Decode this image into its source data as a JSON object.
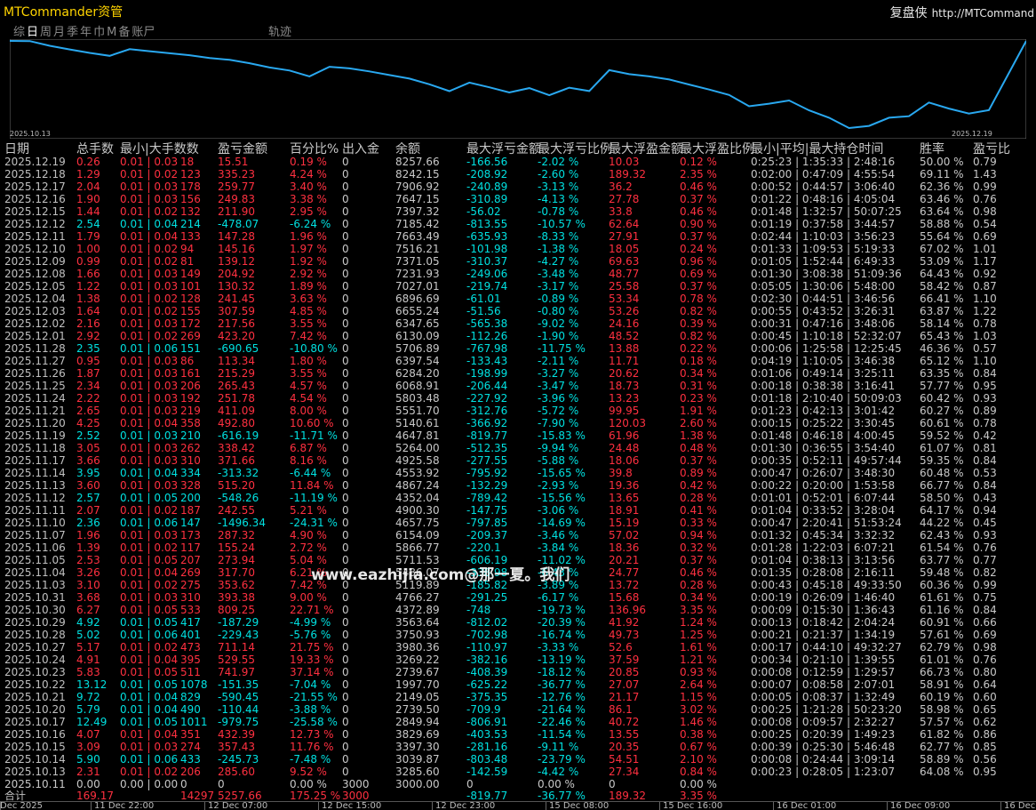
{
  "app": {
    "title": "MTCommander资管",
    "brand": "复盘侠",
    "brand_url": "http://MTCommand"
  },
  "tabs": [
    "综",
    "日",
    "周",
    "月",
    "季",
    "年",
    "巾",
    "M",
    "备",
    "账尸"
  ],
  "active_tab": 1,
  "track_label": "轨迹",
  "equity_chart": {
    "start_label": "2025.10.13",
    "end_label": "2025.12.19",
    "line_color": "#29a8f0",
    "balances": [
      3285.6,
      3039.87,
      3397.3,
      3829.69,
      2849.94,
      2739.5,
      2149.05,
      1997.7,
      2739.67,
      3269.22,
      3980.36,
      3750.93,
      3563.64,
      4372.89,
      4766.27,
      5119.89,
      5486.07,
      5711.53,
      5866.77,
      6154.09,
      4657.75,
      4900.3,
      4352.04,
      4867.24,
      4553.92,
      4925.58,
      5264.0,
      4647.81,
      5140.61,
      5551.7,
      5803.48,
      6068.91,
      6284.2,
      6397.54,
      5706.89,
      6130.09,
      6347.65,
      6655.24,
      6896.69,
      7027.01,
      7231.93,
      7371.05,
      7516.21,
      7663.49,
      7185.42,
      7397.32,
      7647.15,
      7906.92,
      8242.15,
      8257.66
    ]
  },
  "columns": [
    "日期",
    "总手数",
    "最小|大手数数",
    "盈亏金额",
    "百分比%",
    "出入金",
    "余额",
    "最大浮亏金额",
    "最大浮亏比例",
    "最大浮盈金额",
    "最大浮盈比例",
    "最小|平均|最大持仓时间",
    "胜率",
    "盈亏比"
  ],
  "rows": [
    [
      "2025.12.19",
      "0.26",
      "0.01 | 0.03",
      "18",
      "15.51",
      "0.19 %",
      "0",
      "8257.66",
      "-166.56",
      "-2.02 %",
      "10.03",
      "0.12 %",
      "0:25:23 | 1:35:33 | 2:48:16",
      "50.00 %",
      "0.79",
      "pos"
    ],
    [
      "2025.12.18",
      "1.29",
      "0.01 | 0.02",
      "123",
      "335.23",
      "4.24 %",
      "0",
      "8242.15",
      "-208.92",
      "-2.60 %",
      "189.32",
      "2.35 %",
      "0:02:00 | 0:47:09 | 4:55:54",
      "69.11 %",
      "1.43",
      "pos"
    ],
    [
      "2025.12.17",
      "2.04",
      "0.01 | 0.03",
      "178",
      "259.77",
      "3.40 %",
      "0",
      "7906.92",
      "-240.89",
      "-3.13 %",
      "36.2",
      "0.46 %",
      "0:00:52 | 0:44:57 | 3:06:40",
      "62.36 %",
      "0.99",
      "pos"
    ],
    [
      "2025.12.16",
      "1.90",
      "0.01 | 0.03",
      "156",
      "249.83",
      "3.38 %",
      "0",
      "7647.15",
      "-310.89",
      "-4.13 %",
      "27.78",
      "0.37 %",
      "0:01:22 | 0:48:16 | 4:05:04",
      "63.46 %",
      "0.76",
      "pos"
    ],
    [
      "2025.12.15",
      "1.44",
      "0.01 | 0.02",
      "132",
      "211.90",
      "2.95 %",
      "0",
      "7397.32",
      "-56.02",
      "-0.78 %",
      "33.8",
      "0.46 %",
      "0:01:48 | 1:32:57 | 50:07:25",
      "63.64 %",
      "0.98",
      "pos"
    ],
    [
      "2025.12.12",
      "2.54",
      "0.01 | 0.04",
      "214",
      "-478.07",
      "-6.24 %",
      "0",
      "7185.42",
      "-813.55",
      "-10.57 %",
      "62.64",
      "0.90 %",
      "0:01:19 | 0:37:58 | 3:44:57",
      "58.88 %",
      "0.54",
      "neg"
    ],
    [
      "2025.12.11",
      "1.79",
      "0.01 | 0.04",
      "133",
      "147.28",
      "1.96 %",
      "0",
      "7663.49",
      "-635.93",
      "-8.33 %",
      "27.91",
      "0.37 %",
      "0:02:44 | 1:10:03 | 3:56:23",
      "55.64 %",
      "0.69",
      "pos"
    ],
    [
      "2025.12.10",
      "1.00",
      "0.01 | 0.02",
      "94",
      "145.16",
      "1.97 %",
      "0",
      "7516.21",
      "-101.98",
      "-1.38 %",
      "18.05",
      "0.24 %",
      "0:01:33 | 1:09:53 | 5:19:33",
      "67.02 %",
      "1.01",
      "pos"
    ],
    [
      "2025.12.09",
      "0.99",
      "0.01 | 0.02",
      "81",
      "139.12",
      "1.92 %",
      "0",
      "7371.05",
      "-310.37",
      "-4.27 %",
      "69.63",
      "0.96 %",
      "0:01:05 | 1:52:44 | 6:49:33",
      "53.09 %",
      "1.17",
      "pos"
    ],
    [
      "2025.12.08",
      "1.66",
      "0.01 | 0.03",
      "149",
      "204.92",
      "2.92 %",
      "0",
      "7231.93",
      "-249.06",
      "-3.48 %",
      "48.77",
      "0.69 %",
      "0:01:30 | 3:08:38 | 51:09:36",
      "64.43 %",
      "0.92",
      "pos"
    ],
    [
      "2025.12.05",
      "1.22",
      "0.01 | 0.03",
      "101",
      "130.32",
      "1.89 %",
      "0",
      "7027.01",
      "-219.74",
      "-3.17 %",
      "25.58",
      "0.37 %",
      "0:05:05 | 1:30:06 | 5:48:00",
      "58.42 %",
      "0.87",
      "pos"
    ],
    [
      "2025.12.04",
      "1.38",
      "0.01 | 0.02",
      "128",
      "241.45",
      "3.63 %",
      "0",
      "6896.69",
      "-61.01",
      "-0.89 %",
      "53.34",
      "0.78 %",
      "0:02:30 | 0:44:51 | 3:46:56",
      "66.41 %",
      "1.10",
      "pos"
    ],
    [
      "2025.12.03",
      "1.64",
      "0.01 | 0.02",
      "155",
      "307.59",
      "4.85 %",
      "0",
      "6655.24",
      "-51.56",
      "-0.80 %",
      "53.26",
      "0.82 %",
      "0:00:55 | 0:43:52 | 3:26:31",
      "63.87 %",
      "1.22",
      "pos"
    ],
    [
      "2025.12.02",
      "2.16",
      "0.01 | 0.03",
      "172",
      "217.56",
      "3.55 %",
      "0",
      "6347.65",
      "-565.38",
      "-9.02 %",
      "24.16",
      "0.39 %",
      "0:00:31 | 0:47:16 | 3:48:06",
      "58.14 %",
      "0.78",
      "pos"
    ],
    [
      "2025.12.01",
      "2.92",
      "0.01 | 0.02",
      "269",
      "423.20",
      "7.42 %",
      "0",
      "6130.09",
      "-112.26",
      "-1.90 %",
      "48.52",
      "0.82 %",
      "0:00:45 | 1:10:18 | 52:32:07",
      "65.43 %",
      "1.03",
      "pos"
    ],
    [
      "2025.11.28",
      "2.35",
      "0.01 | 0.06",
      "151",
      "-690.65",
      "-10.80 %",
      "0",
      "5706.89",
      "-767.98",
      "-11.75 %",
      "13.88",
      "0.22 %",
      "0:00:06 | 1:25:58 | 12:25:45",
      "46.36 %",
      "0.57",
      "neg"
    ],
    [
      "2025.11.27",
      "0.95",
      "0.01 | 0.03",
      "86",
      "113.34",
      "1.80 %",
      "0",
      "6397.54",
      "-133.43",
      "-2.11 %",
      "11.71",
      "0.18 %",
      "0:04:19 | 1:10:05 | 3:46:38",
      "65.12 %",
      "1.10",
      "pos"
    ],
    [
      "2025.11.26",
      "1.87",
      "0.01 | 0.03",
      "161",
      "215.29",
      "3.55 %",
      "0",
      "6284.20",
      "-198.99",
      "-3.27 %",
      "20.62",
      "0.34 %",
      "0:01:06 | 0:49:14 | 3:25:11",
      "63.35 %",
      "0.84",
      "pos"
    ],
    [
      "2025.11.25",
      "2.34",
      "0.01 | 0.03",
      "206",
      "265.43",
      "4.57 %",
      "0",
      "6068.91",
      "-206.44",
      "-3.47 %",
      "18.73",
      "0.31 %",
      "0:00:18 | 0:38:38 | 3:16:41",
      "57.77 %",
      "0.95",
      "pos"
    ],
    [
      "2025.11.24",
      "2.22",
      "0.01 | 0.03",
      "192",
      "251.78",
      "4.54 %",
      "0",
      "5803.48",
      "-227.92",
      "-3.96 %",
      "13.23",
      "0.23 %",
      "0:01:18 | 2:10:40 | 50:09:03",
      "60.42 %",
      "0.93",
      "pos"
    ],
    [
      "2025.11.21",
      "2.65",
      "0.01 | 0.03",
      "219",
      "411.09",
      "8.00 %",
      "0",
      "5551.70",
      "-312.76",
      "-5.72 %",
      "99.95",
      "1.91 %",
      "0:01:23 | 0:42:13 | 3:01:42",
      "60.27 %",
      "0.89",
      "pos"
    ],
    [
      "2025.11.20",
      "4.25",
      "0.01 | 0.04",
      "358",
      "492.80",
      "10.60 %",
      "0",
      "5140.61",
      "-366.92",
      "-7.90 %",
      "120.03",
      "2.60 %",
      "0:00:15 | 0:25:22 | 3:30:45",
      "60.61 %",
      "0.78",
      "pos"
    ],
    [
      "2025.11.19",
      "2.52",
      "0.01 | 0.03",
      "210",
      "-616.19",
      "-11.71 %",
      "0",
      "4647.81",
      "-819.77",
      "-15.83 %",
      "61.96",
      "1.38 %",
      "0:01:48 | 0:46:18 | 4:00:45",
      "59.52 %",
      "0.42",
      "neg"
    ],
    [
      "2025.11.18",
      "3.05",
      "0.01 | 0.03",
      "262",
      "338.42",
      "6.87 %",
      "0",
      "5264.00",
      "-512.35",
      "-9.94 %",
      "24.48",
      "0.48 %",
      "0:01:30 | 0:36:55 | 3:54:40",
      "61.07 %",
      "0.81",
      "pos"
    ],
    [
      "2025.11.17",
      "3.66",
      "0.01 | 0.03",
      "310",
      "371.66",
      "8.16 %",
      "0",
      "4925.58",
      "-277.55",
      "-5.88 %",
      "18.06",
      "0.37 %",
      "0:00:35 | 0:52:11 | 49:57:44",
      "59.35 %",
      "0.84",
      "pos"
    ],
    [
      "2025.11.14",
      "3.95",
      "0.01 | 0.04",
      "334",
      "-313.32",
      "-6.44 %",
      "0",
      "4553.92",
      "-795.92",
      "-15.65 %",
      "39.8",
      "0.89 %",
      "0:00:47 | 0:26:07 | 3:48:30",
      "60.48 %",
      "0.53",
      "neg"
    ],
    [
      "2025.11.13",
      "3.60",
      "0.01 | 0.03",
      "328",
      "515.20",
      "11.84 %",
      "0",
      "4867.24",
      "-132.29",
      "-2.93 %",
      "19.36",
      "0.42 %",
      "0:00:22 | 0:20:00 | 1:53:58",
      "66.77 %",
      "0.84",
      "pos"
    ],
    [
      "2025.11.12",
      "2.57",
      "0.01 | 0.05",
      "200",
      "-548.26",
      "-11.19 %",
      "0",
      "4352.04",
      "-789.42",
      "-15.56 %",
      "13.65",
      "0.28 %",
      "0:01:01 | 0:52:01 | 6:07:44",
      "58.50 %",
      "0.43",
      "neg"
    ],
    [
      "2025.11.11",
      "2.07",
      "0.01 | 0.02",
      "187",
      "242.55",
      "5.21 %",
      "0",
      "4900.30",
      "-147.75",
      "-3.06 %",
      "18.91",
      "0.41 %",
      "0:01:04 | 0:33:52 | 3:28:04",
      "64.17 %",
      "0.94",
      "pos"
    ],
    [
      "2025.11.10",
      "2.36",
      "0.01 | 0.06",
      "147",
      "-1496.34",
      "-24.31 %",
      "0",
      "4657.75",
      "-797.85",
      "-14.69 %",
      "15.19",
      "0.33 %",
      "0:00:47 | 2:20:41 | 51:53:24",
      "44.22 %",
      "0.45",
      "neg"
    ],
    [
      "2025.11.07",
      "1.96",
      "0.01 | 0.03",
      "173",
      "287.32",
      "4.90 %",
      "0",
      "6154.09",
      "-209.37",
      "-3.46 %",
      "57.02",
      "0.94 %",
      "0:01:32 | 0:45:34 | 3:32:32",
      "62.43 %",
      "0.93",
      "pos"
    ],
    [
      "2025.11.06",
      "1.39",
      "0.01 | 0.02",
      "117",
      "155.24",
      "2.72 %",
      "0",
      "5866.77",
      "-220.1",
      "-3.84 %",
      "18.36",
      "0.32 %",
      "0:01:28 | 1:22:03 | 6:07:21",
      "61.54 %",
      "0.76",
      "pos"
    ],
    [
      "2025.11.05",
      "2.53",
      "0.01 | 0.05",
      "207",
      "273.94",
      "5.04 %",
      "0",
      "5711.53",
      "-606.19",
      "-11.02 %",
      "20.21",
      "0.37 %",
      "0:01:04 | 0:38:13 | 3:13:56",
      "63.77 %",
      "0.77",
      "pos"
    ],
    [
      "2025.11.04",
      "3.26",
      "0.01 | 0.04",
      "269",
      "317.70",
      "6.21 %",
      "0",
      "5486.07",
      "-338.98",
      "-6.43 %",
      "24.77",
      "0.46 %",
      "0:01:35 | 0:28:08 | 2:16:11",
      "59.48 %",
      "0.82",
      "pos"
    ],
    [
      "2025.11.03",
      "3.10",
      "0.01 | 0.02",
      "275",
      "353.62",
      "7.42 %",
      "0",
      "5119.89",
      "-185.82",
      "-3.89 %",
      "13.72",
      "0.28 %",
      "0:00:43 | 0:45:18 | 49:33:50",
      "60.36 %",
      "0.99",
      "pos"
    ],
    [
      "2025.10.31",
      "3.68",
      "0.01 | 0.03",
      "310",
      "393.38",
      "9.00 %",
      "0",
      "4766.27",
      "-291.25",
      "-6.17 %",
      "15.68",
      "0.34 %",
      "0:00:19 | 0:26:09 | 1:46:40",
      "61.61 %",
      "0.75",
      "pos"
    ],
    [
      "2025.10.30",
      "6.27",
      "0.01 | 0.05",
      "533",
      "809.25",
      "22.71 %",
      "0",
      "4372.89",
      "-748",
      "-19.73 %",
      "136.96",
      "3.35 %",
      "0:00:09 | 0:15:30 | 1:36:43",
      "61.16 %",
      "0.84",
      "pos"
    ],
    [
      "2025.10.29",
      "4.92",
      "0.01 | 0.05",
      "417",
      "-187.29",
      "-4.99 %",
      "0",
      "3563.64",
      "-812.02",
      "-20.39 %",
      "41.92",
      "1.24 %",
      "0:00:13 | 0:18:42 | 2:04:24",
      "60.91 %",
      "0.66",
      "neg"
    ],
    [
      "2025.10.28",
      "5.02",
      "0.01 | 0.06",
      "401",
      "-229.43",
      "-5.76 %",
      "0",
      "3750.93",
      "-702.98",
      "-16.74 %",
      "49.73",
      "1.25 %",
      "0:00:21 | 0:21:37 | 1:34:19",
      "57.61 %",
      "0.69",
      "neg"
    ],
    [
      "2025.10.27",
      "5.17",
      "0.01 | 0.02",
      "473",
      "711.14",
      "21.75 %",
      "0",
      "3980.36",
      "-110.97",
      "-3.33 %",
      "52.6",
      "1.61 %",
      "0:00:17 | 0:44:10 | 49:32:27",
      "62.79 %",
      "0.98",
      "pos"
    ],
    [
      "2025.10.24",
      "4.91",
      "0.01 | 0.04",
      "395",
      "529.55",
      "19.33 %",
      "0",
      "3269.22",
      "-382.16",
      "-13.19 %",
      "37.59",
      "1.21 %",
      "0:00:34 | 0:21:10 | 1:39:55",
      "61.01 %",
      "0.76",
      "pos"
    ],
    [
      "2025.10.23",
      "5.83",
      "0.01 | 0.05",
      "511",
      "741.97",
      "37.14 %",
      "0",
      "2739.67",
      "-408.39",
      "-18.12 %",
      "20.85",
      "0.93 %",
      "0:00:08 | 0:12:59 | 1:29:57",
      "66.73 %",
      "0.80",
      "pos"
    ],
    [
      "2025.10.22",
      "13.12",
      "0.01 | 0.05",
      "1078",
      "-151.35",
      "-7.04 %",
      "0",
      "1997.70",
      "-625.22",
      "-36.77 %",
      "27.07",
      "2.64 %",
      "0:00:07 | 0:08:58 | 2:07:01",
      "58.91 %",
      "0.64",
      "neg"
    ],
    [
      "2025.10.21",
      "9.72",
      "0.01 | 0.04",
      "829",
      "-590.45",
      "-21.55 %",
      "0",
      "2149.05",
      "-375.35",
      "-12.76 %",
      "21.17",
      "1.15 %",
      "0:00:05 | 0:08:37 | 1:32:49",
      "60.19 %",
      "0.60",
      "neg"
    ],
    [
      "2025.10.20",
      "5.79",
      "0.01 | 0.04",
      "490",
      "-110.44",
      "-3.88 %",
      "0",
      "2739.50",
      "-709.9",
      "-21.64 %",
      "86.1",
      "3.02 %",
      "0:00:25 | 1:21:28 | 50:23:20",
      "58.98 %",
      "0.65",
      "neg"
    ],
    [
      "2025.10.17",
      "12.49",
      "0.01 | 0.05",
      "1011",
      "-979.75",
      "-25.58 %",
      "0",
      "2849.94",
      "-806.91",
      "-22.46 %",
      "40.72",
      "1.46 %",
      "0:00:08 | 0:09:57 | 2:32:27",
      "57.57 %",
      "0.62",
      "neg"
    ],
    [
      "2025.10.16",
      "4.07",
      "0.01 | 0.04",
      "351",
      "432.39",
      "12.73 %",
      "0",
      "3829.69",
      "-403.53",
      "-11.54 %",
      "13.55",
      "0.38 %",
      "0:00:25 | 0:20:39 | 1:49:23",
      "61.82 %",
      "0.86",
      "pos"
    ],
    [
      "2025.10.15",
      "3.09",
      "0.01 | 0.03",
      "274",
      "357.43",
      "11.76 %",
      "0",
      "3397.30",
      "-281.16",
      "-9.11 %",
      "20.35",
      "0.67 %",
      "0:00:39 | 0:25:30 | 5:46:48",
      "62.77 %",
      "0.85",
      "pos"
    ],
    [
      "2025.10.14",
      "5.90",
      "0.01 | 0.06",
      "433",
      "-245.73",
      "-7.48 %",
      "0",
      "3039.87",
      "-803.48",
      "-23.79 %",
      "54.51",
      "2.10 %",
      "0:00:08 | 0:24:44 | 3:09:14",
      "58.89 %",
      "0.56",
      "neg"
    ],
    [
      "2025.10.13",
      "2.31",
      "0.01 | 0.02",
      "206",
      "285.60",
      "9.52 %",
      "0",
      "3285.60",
      "-142.59",
      "-4.42 %",
      "27.34",
      "0.84 %",
      "0:00:23 | 0:28:05 | 1:23:07",
      "64.08 %",
      "0.95",
      "pos"
    ],
    [
      "2025.10.11",
      "0.00",
      "0.00 | 0.00",
      "0",
      "0",
      "0.00 %",
      "3000",
      "3000.00",
      "0",
      "0.00 %",
      "0",
      "0.00 %",
      "",
      "",
      "",
      "neu"
    ]
  ],
  "total_row": [
    "合计",
    "169.17",
    "",
    "14297",
    "5257.66",
    "175.25 %",
    "3000",
    "",
    "-819.77",
    "-36.77 %",
    "189.32",
    "3.35 %"
  ],
  "watermark": "www.eazhijia.com@那一夏。我们",
  "time_axis": [
    "Dec 2025",
    "11 Dec 22:00",
    "12 Dec 07:00",
    "12 Dec 15:00",
    "12 Dec 23:00",
    "15 Dec 08:00",
    "15 Dec 16:00",
    "16 Dec 01:00",
    "16 Dec 09:00",
    "16 Dec"
  ],
  "colors": {
    "positive": "#ff3040",
    "negative": "#00e0e0",
    "title": "#ffd400",
    "line": "#29a8f0"
  }
}
